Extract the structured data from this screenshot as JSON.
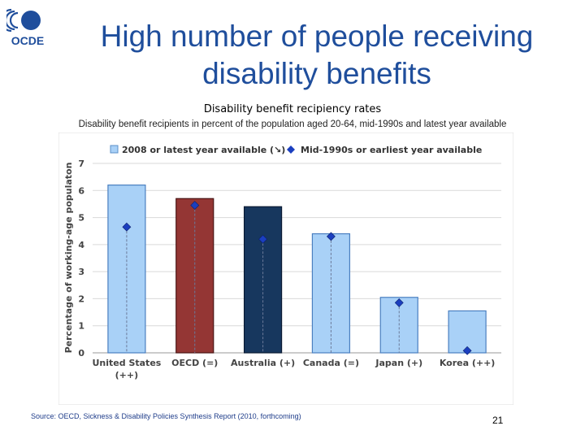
{
  "slide": {
    "title_line1": "High number of people receiving",
    "title_line2": "disability benefits",
    "source": "Source: OECD, Sickness & Disability Policies Synthesis Report (2010, forthcoming)",
    "page_number": "21"
  },
  "logo": {
    "text": "OCDE",
    "icon": "oecd-logo-icon",
    "color": "#1f4e9c"
  },
  "colors": {
    "bar_light": "#a9d1f7",
    "bar_oecd": "#943634",
    "bar_australia": "#17375e",
    "marker": "#1b3fbf",
    "title": "#1f4e9c"
  },
  "chart_data": {
    "type": "bar",
    "title": "Disability benefit recipiency rates",
    "subtitle": "Disability benefit recipients in percent of the population aged 20-64, mid-1990s and latest year available",
    "ylabel": "Percentage of working-age populaton",
    "xlabel": "",
    "ylim": [
      0,
      7
    ],
    "yticks": [
      0,
      1,
      2,
      3,
      4,
      5,
      6,
      7
    ],
    "categories": [
      [
        "United States",
        "(++)"
      ],
      [
        "OECD (=)"
      ],
      [
        "Australia (+)"
      ],
      [
        "Canada (=)"
      ],
      [
        "Japan (+)"
      ],
      [
        "Korea (++)"
      ]
    ],
    "bar_colors": [
      "#a9d1f7",
      "#943634",
      "#17375e",
      "#a9d1f7",
      "#a9d1f7",
      "#a9d1f7"
    ],
    "series": [
      {
        "name": "2008 or latest year available (↘)",
        "kind": "bar",
        "values": [
          6.2,
          5.7,
          5.4,
          4.4,
          2.05,
          1.55
        ]
      },
      {
        "name": "Mid-1990s or earliest year available",
        "kind": "marker",
        "values": [
          4.65,
          5.45,
          4.2,
          4.3,
          1.85,
          0.08
        ]
      }
    ],
    "grid": true,
    "legend": "top"
  }
}
